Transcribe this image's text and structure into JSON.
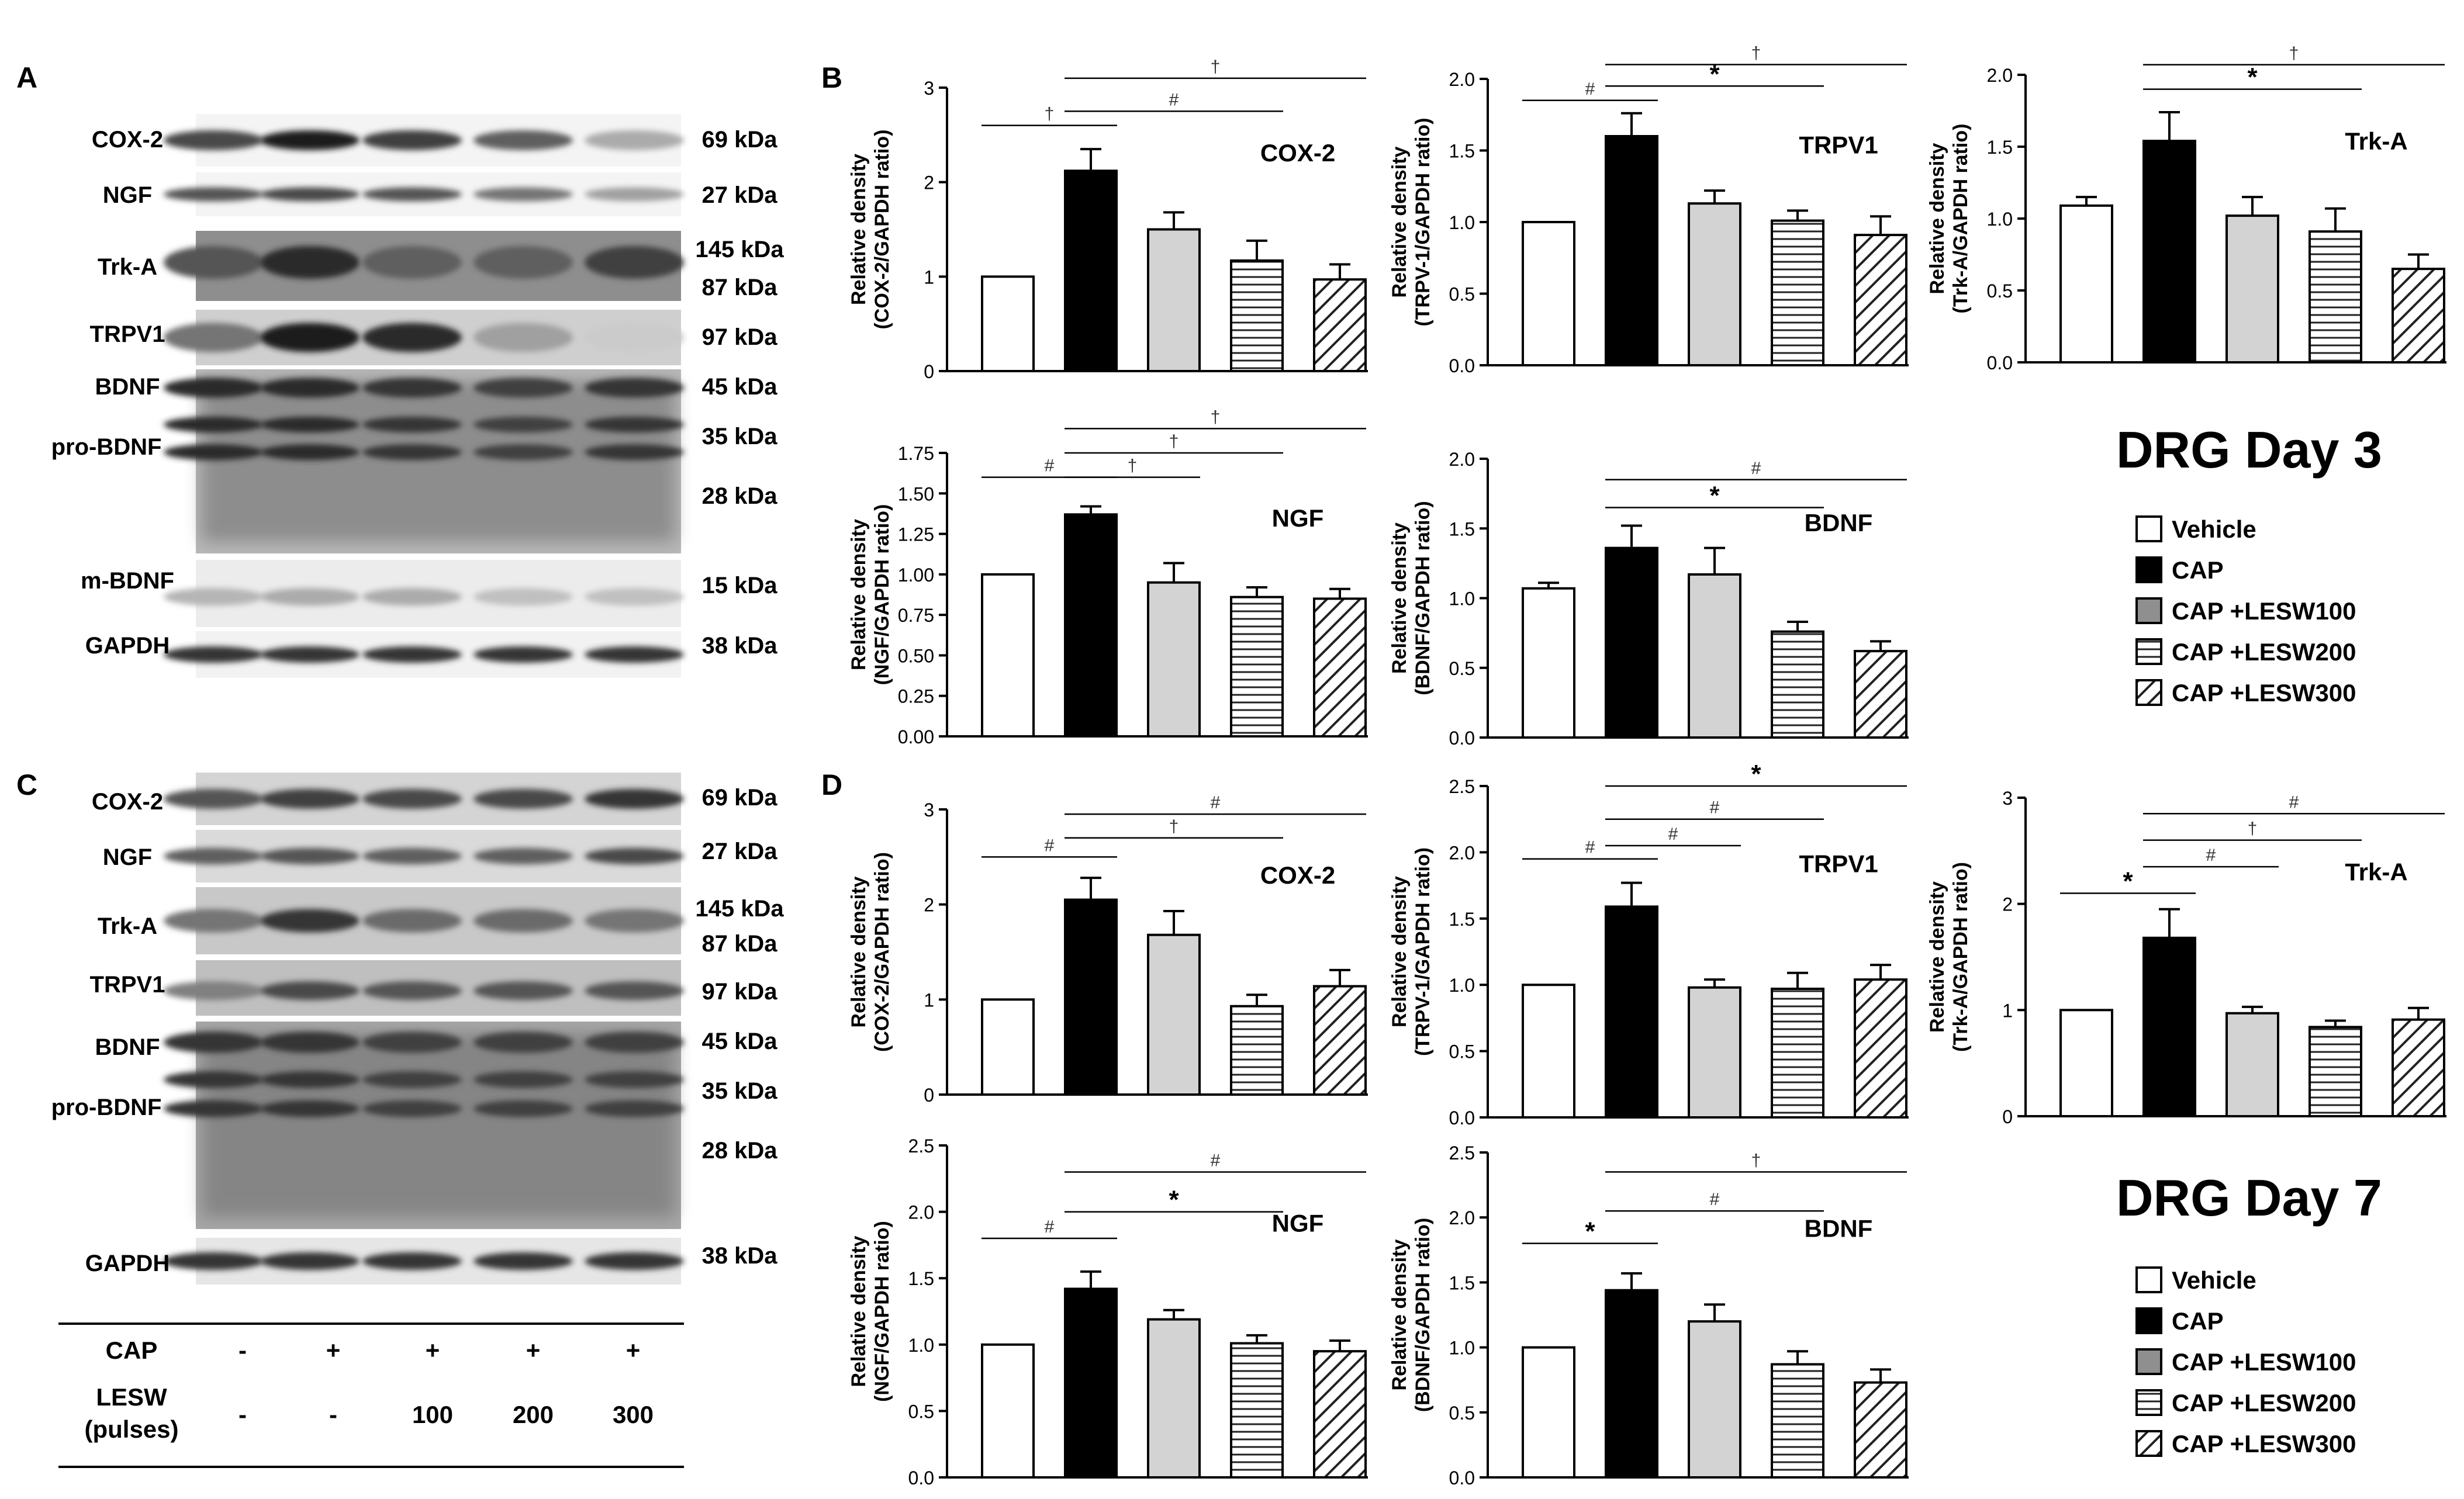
{
  "panel_letters": {
    "a": "A",
    "b": "B",
    "c": "C",
    "d": "D"
  },
  "day3_title": "DRG Day 3",
  "day7_title": "DRG Day 7",
  "legend": {
    "vehicle": "Vehicle",
    "cap": "CAP",
    "lesw100": "CAP +LESW100",
    "lesw200": "CAP +LESW200",
    "lesw300": "CAP +LESW300"
  },
  "blot_a": {
    "rows": [
      {
        "label": "COX-2",
        "kda": [
          "69 kDa"
        ],
        "intensity": [
          0.75,
          0.95,
          0.8,
          0.65,
          0.3
        ]
      },
      {
        "label": "NGF",
        "kda": [
          "27 kDa"
        ],
        "intensity": [
          0.7,
          0.75,
          0.7,
          0.55,
          0.35
        ]
      },
      {
        "label": "Trk-A",
        "kda": [
          "145 kDa",
          "87 kDa"
        ],
        "intensity": [
          0.7,
          0.9,
          0.65,
          0.65,
          0.8
        ]
      },
      {
        "label": "TRPV1",
        "kda": [
          "97 kDa"
        ],
        "intensity": [
          0.55,
          0.95,
          0.9,
          0.35,
          0.15
        ]
      },
      {
        "label": "BDNF",
        "sub_label": "pro-BDNF",
        "kda": [
          "45 kDa",
          "35 kDa",
          "28 kDa"
        ],
        "intensity": [
          0.9,
          0.9,
          0.85,
          0.8,
          0.85
        ]
      },
      {
        "label": "m-BDNF",
        "kda": [
          "15 kDa"
        ],
        "intensity": [
          0.25,
          0.3,
          0.3,
          0.2,
          0.2
        ]
      },
      {
        "label": "GAPDH",
        "kda": [
          "38 kDa"
        ],
        "intensity": [
          0.85,
          0.85,
          0.85,
          0.85,
          0.85
        ]
      }
    ]
  },
  "blot_c": {
    "rows": [
      {
        "label": "COX-2",
        "kda": [
          "69 kDa"
        ],
        "intensity": [
          0.7,
          0.8,
          0.75,
          0.75,
          0.85
        ]
      },
      {
        "label": "NGF",
        "kda": [
          "27 kDa"
        ],
        "intensity": [
          0.65,
          0.7,
          0.65,
          0.65,
          0.75
        ]
      },
      {
        "label": "Trk-A",
        "kda": [
          "145 kDa",
          "87 kDa"
        ],
        "intensity": [
          0.55,
          0.85,
          0.6,
          0.6,
          0.55
        ]
      },
      {
        "label": "TRPV1",
        "kda": [
          "97 kDa"
        ],
        "intensity": [
          0.5,
          0.75,
          0.7,
          0.7,
          0.7
        ]
      },
      {
        "label": "BDNF",
        "sub_label": "pro-BDNF",
        "kda": [
          "45 kDa",
          "35 kDa",
          "28 kDa"
        ],
        "intensity": [
          0.85,
          0.85,
          0.8,
          0.8,
          0.8
        ]
      },
      {
        "label": "GAPDH",
        "kda": [
          "38 kDa"
        ],
        "intensity": [
          0.85,
          0.85,
          0.85,
          0.85,
          0.85
        ]
      }
    ]
  },
  "treatment_table": {
    "cap_label": "CAP",
    "cap_values": [
      "-",
      "+",
      "+",
      "+",
      "+"
    ],
    "lesw_label_1": "LESW",
    "lesw_label_2": "(pulses)",
    "lesw_values": [
      "-",
      "-",
      "100",
      "200",
      "300"
    ]
  },
  "chart_data": [
    {
      "id": "b_cox2",
      "type": "bar",
      "title": "COX-2",
      "ylabel_1": "Relative density",
      "ylabel_2": "(COX-2/GAPDH ratio)",
      "categories": [
        "Vehicle",
        "CAP",
        "CAP +LESW100",
        "CAP +LESW200",
        "CAP +LESW300"
      ],
      "values": [
        1.0,
        2.12,
        1.5,
        1.17,
        0.97
      ],
      "errors": [
        0,
        0.23,
        0.18,
        0.21,
        0.16
      ],
      "ylim": [
        0,
        3
      ],
      "ticks": [
        0,
        1,
        2,
        3
      ],
      "tick_labels": [
        "0",
        "1",
        "2",
        "3"
      ],
      "sig": [
        {
          "from": 0,
          "to": 1,
          "level": 2.6,
          "symbol": "†"
        },
        {
          "from": 1,
          "to": 3,
          "level": 2.75,
          "symbol": "#"
        },
        {
          "from": 1,
          "to": 4,
          "level": 3.1,
          "symbol": "†"
        }
      ]
    },
    {
      "id": "b_trpv1",
      "type": "bar",
      "title": "TRPV1",
      "ylabel_1": "Relative density",
      "ylabel_2": "(TRPV-1/GAPDH ratio)",
      "categories": [
        "Vehicle",
        "CAP",
        "CAP +LESW100",
        "CAP +LESW200",
        "CAP +LESW300"
      ],
      "values": [
        1.0,
        1.6,
        1.13,
        1.01,
        0.91
      ],
      "errors": [
        0,
        0.16,
        0.09,
        0.07,
        0.13
      ],
      "ylim": [
        0,
        2
      ],
      "ticks": [
        0,
        0.5,
        1,
        1.5,
        2
      ],
      "tick_labels": [
        "0.0",
        "0.5",
        "1.0",
        "1.5",
        "2.0"
      ],
      "sig": [
        {
          "from": 0,
          "to": 1,
          "level": 1.85,
          "symbol": "#"
        },
        {
          "from": 1,
          "to": 3,
          "level": 1.95,
          "symbol": "*"
        },
        {
          "from": 1,
          "to": 4,
          "level": 2.1,
          "symbol": "†"
        }
      ]
    },
    {
      "id": "b_trka",
      "type": "bar",
      "title": "Trk-A",
      "ylabel_1": "Relative density",
      "ylabel_2": "(Trk-A/GAPDH ratio)",
      "categories": [
        "Vehicle",
        "CAP",
        "CAP +LESW100",
        "CAP +LESW200",
        "CAP +LESW300"
      ],
      "values": [
        1.09,
        1.54,
        1.02,
        0.91,
        0.65
      ],
      "errors": [
        0.06,
        0.2,
        0.13,
        0.16,
        0.1
      ],
      "ylim": [
        0,
        2
      ],
      "ticks": [
        0,
        0.5,
        1,
        1.5,
        2
      ],
      "tick_labels": [
        "0.0",
        "0.5",
        "1.0",
        "1.5",
        "2.0"
      ],
      "sig": [
        {
          "from": 1,
          "to": 3,
          "level": 1.9,
          "symbol": "*"
        },
        {
          "from": 1,
          "to": 4,
          "level": 2.07,
          "symbol": "†"
        }
      ]
    },
    {
      "id": "b_ngf",
      "type": "bar",
      "title": "NGF",
      "ylabel_1": "Relative density",
      "ylabel_2": "(NGF/GAPDH ratio)",
      "categories": [
        "Vehicle",
        "CAP",
        "CAP +LESW100",
        "CAP +LESW200",
        "CAP +LESW300"
      ],
      "values": [
        1.0,
        1.37,
        0.95,
        0.86,
        0.85
      ],
      "errors": [
        0,
        0.05,
        0.12,
        0.06,
        0.06
      ],
      "ylim": [
        0,
        1.75
      ],
      "ticks": [
        0,
        0.25,
        0.5,
        0.75,
        1,
        1.25,
        1.5,
        1.75
      ],
      "tick_labels": [
        "0.00",
        "0.25",
        "0.50",
        "0.75",
        "1.00",
        "1.25",
        "1.50",
        "1.75"
      ],
      "sig": [
        {
          "from": 0,
          "to": 1,
          "level": 1.6,
          "symbol": "#"
        },
        {
          "from": 1,
          "to": 2,
          "level": 1.6,
          "symbol": "†"
        },
        {
          "from": 1,
          "to": 3,
          "level": 1.75,
          "symbol": "†"
        },
        {
          "from": 1,
          "to": 4,
          "level": 1.9,
          "symbol": "†"
        }
      ]
    },
    {
      "id": "b_bdnf",
      "type": "bar",
      "title": "BDNF",
      "ylabel_1": "Relative density",
      "ylabel_2": "(BDNF/GAPDH ratio)",
      "categories": [
        "Vehicle",
        "CAP",
        "CAP +LESW100",
        "CAP +LESW200",
        "CAP +LESW300"
      ],
      "values": [
        1.07,
        1.36,
        1.17,
        0.76,
        0.62
      ],
      "errors": [
        0.04,
        0.16,
        0.19,
        0.07,
        0.07
      ],
      "ylim": [
        0,
        2
      ],
      "ticks": [
        0,
        0.5,
        1,
        1.5,
        2
      ],
      "tick_labels": [
        "0.0",
        "0.5",
        "1.0",
        "1.5",
        "2.0"
      ],
      "sig": [
        {
          "from": 1,
          "to": 3,
          "level": 1.65,
          "symbol": "*"
        },
        {
          "from": 1,
          "to": 4,
          "level": 1.85,
          "symbol": "#"
        }
      ]
    },
    {
      "id": "d_cox2",
      "type": "bar",
      "title": "COX-2",
      "ylabel_1": "Relative density",
      "ylabel_2": "(COX-2/GAPDH ratio)",
      "categories": [
        "Vehicle",
        "CAP",
        "CAP +LESW100",
        "CAP +LESW200",
        "CAP +LESW300"
      ],
      "values": [
        1.0,
        2.05,
        1.68,
        0.93,
        1.14
      ],
      "errors": [
        0,
        0.23,
        0.25,
        0.12,
        0.17
      ],
      "ylim": [
        0,
        3
      ],
      "ticks": [
        0,
        1,
        2,
        3
      ],
      "tick_labels": [
        "0",
        "1",
        "2",
        "3"
      ],
      "sig": [
        {
          "from": 0,
          "to": 1,
          "level": 2.5,
          "symbol": "#"
        },
        {
          "from": 1,
          "to": 3,
          "level": 2.7,
          "symbol": "†"
        },
        {
          "from": 1,
          "to": 4,
          "level": 2.95,
          "symbol": "#"
        }
      ]
    },
    {
      "id": "d_trpv1",
      "type": "bar",
      "title": "TRPV1",
      "ylabel_1": "Relative density",
      "ylabel_2": "(TRPV-1/GAPDH ratio)",
      "categories": [
        "Vehicle",
        "CAP",
        "CAP +LESW100",
        "CAP +LESW200",
        "CAP +LESW300"
      ],
      "values": [
        1.0,
        1.59,
        0.98,
        0.97,
        1.04
      ],
      "errors": [
        0,
        0.18,
        0.06,
        0.12,
        0.11
      ],
      "ylim": [
        0,
        2.5
      ],
      "ticks": [
        0,
        0.5,
        1,
        1.5,
        2,
        2.5
      ],
      "tick_labels": [
        "0.0",
        "0.5",
        "1.0",
        "1.5",
        "2.0",
        "2.5"
      ],
      "sig": [
        {
          "from": 0,
          "to": 1,
          "level": 1.95,
          "symbol": "#"
        },
        {
          "from": 1,
          "to": 2,
          "level": 2.05,
          "symbol": "#"
        },
        {
          "from": 1,
          "to": 3,
          "level": 2.25,
          "symbol": "#"
        },
        {
          "from": 1,
          "to": 4,
          "level": 2.5,
          "symbol": "*"
        }
      ]
    },
    {
      "id": "d_trka",
      "type": "bar",
      "title": "Trk-A",
      "ylabel_1": "Relative density",
      "ylabel_2": "(Trk-A/GAPDH ratio)",
      "categories": [
        "Vehicle",
        "CAP",
        "CAP +LESW100",
        "CAP +LESW200",
        "CAP +LESW300"
      ],
      "values": [
        1.0,
        1.68,
        0.97,
        0.84,
        0.91
      ],
      "errors": [
        0,
        0.27,
        0.06,
        0.06,
        0.11
      ],
      "ylim": [
        0,
        3
      ],
      "ticks": [
        0,
        1,
        2,
        3
      ],
      "tick_labels": [
        "0",
        "1",
        "2",
        "3"
      ],
      "sig": [
        {
          "from": 0,
          "to": 1,
          "level": 2.1,
          "symbol": "*"
        },
        {
          "from": 1,
          "to": 2,
          "level": 2.35,
          "symbol": "#"
        },
        {
          "from": 1,
          "to": 3,
          "level": 2.6,
          "symbol": "†"
        },
        {
          "from": 1,
          "to": 4,
          "level": 2.85,
          "symbol": "#"
        }
      ]
    },
    {
      "id": "d_ngf",
      "type": "bar",
      "title": "NGF",
      "ylabel_1": "Relative density",
      "ylabel_2": "(NGF/GAPDH ratio)",
      "categories": [
        "Vehicle",
        "CAP",
        "CAP +LESW100",
        "CAP +LESW200",
        "CAP +LESW300"
      ],
      "values": [
        1.0,
        1.42,
        1.19,
        1.01,
        0.95
      ],
      "errors": [
        0,
        0.13,
        0.07,
        0.06,
        0.08
      ],
      "ylim": [
        0,
        2.5
      ],
      "ticks": [
        0,
        0.5,
        1,
        1.5,
        2,
        2.5
      ],
      "tick_labels": [
        "0.0",
        "0.5",
        "1.0",
        "1.5",
        "2.0",
        "2.5"
      ],
      "sig": [
        {
          "from": 0,
          "to": 1,
          "level": 1.8,
          "symbol": "#"
        },
        {
          "from": 1,
          "to": 3,
          "level": 2.0,
          "symbol": "*"
        },
        {
          "from": 1,
          "to": 4,
          "level": 2.3,
          "symbol": "#"
        }
      ]
    },
    {
      "id": "d_bdnf",
      "type": "bar",
      "title": "BDNF",
      "ylabel_1": "Relative density",
      "ylabel_2": "(BDNF/GAPDH ratio)",
      "categories": [
        "Vehicle",
        "CAP",
        "CAP +LESW100",
        "CAP +LESW200",
        "CAP +LESW300"
      ],
      "values": [
        1.0,
        1.44,
        1.2,
        0.87,
        0.73
      ],
      "errors": [
        0,
        0.13,
        0.13,
        0.1,
        0.1
      ],
      "ylim": [
        0,
        2.5
      ],
      "ticks": [
        0,
        0.5,
        1,
        1.5,
        2,
        2.5
      ],
      "tick_labels": [
        "0.0",
        "0.5",
        "1.0",
        "1.5",
        "2.0",
        "2.5"
      ],
      "sig": [
        {
          "from": 0,
          "to": 1,
          "level": 1.8,
          "symbol": "*"
        },
        {
          "from": 1,
          "to": 3,
          "level": 2.05,
          "symbol": "#"
        },
        {
          "from": 1,
          "to": 4,
          "level": 2.35,
          "symbol": "†"
        }
      ]
    }
  ]
}
